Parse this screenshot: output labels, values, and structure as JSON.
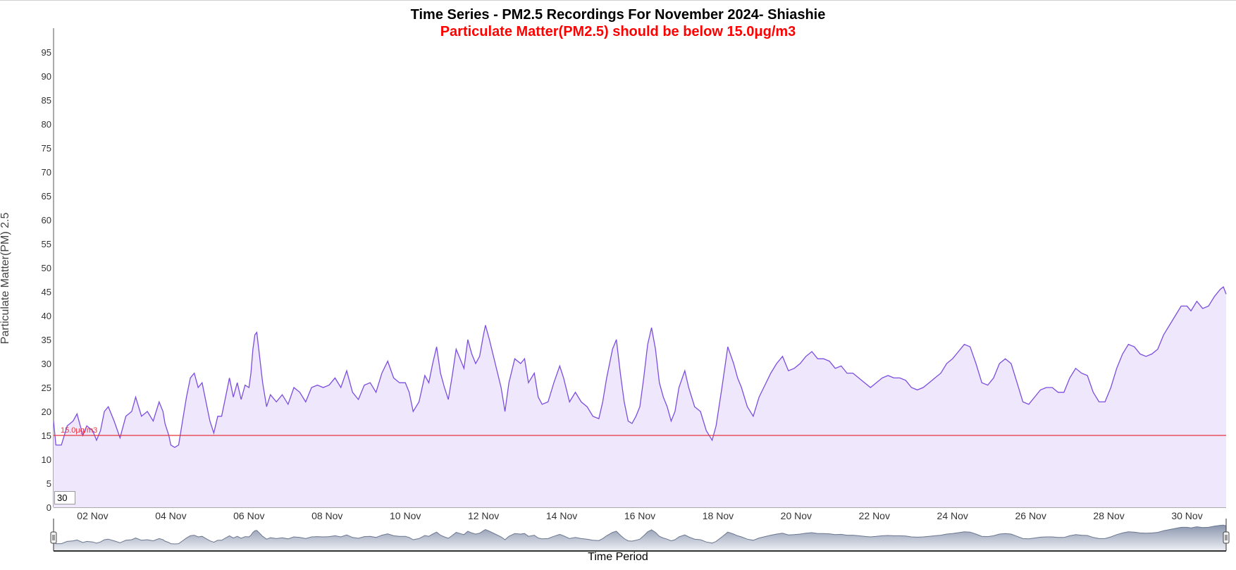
{
  "chart_data": {
    "type": "area",
    "title": "Time Series - PM2.5 Recordings For November 2024- Shiashie",
    "subtitle": "Particulate Matter(PM2.5) should be below 15.0μg/m3",
    "ylabel": "Particulate Matter(PM) 2.5",
    "xlabel": "Time Period",
    "ylim": [
      0,
      100
    ],
    "y_ticks": [
      0,
      5,
      10,
      15,
      20,
      25,
      30,
      35,
      40,
      45,
      50,
      55,
      60,
      65,
      70,
      75,
      80,
      85,
      90,
      95
    ],
    "x_start_day": 1,
    "x_end_day": 31,
    "x_ticks": [
      {
        "day": 2,
        "label": "02 Nov"
      },
      {
        "day": 4,
        "label": "04 Nov"
      },
      {
        "day": 6,
        "label": "06 Nov"
      },
      {
        "day": 8,
        "label": "08 Nov"
      },
      {
        "day": 10,
        "label": "10 Nov"
      },
      {
        "day": 12,
        "label": "12 Nov"
      },
      {
        "day": 14,
        "label": "14 Nov"
      },
      {
        "day": 16,
        "label": "16 Nov"
      },
      {
        "day": 18,
        "label": "18 Nov"
      },
      {
        "day": 20,
        "label": "20 Nov"
      },
      {
        "day": 22,
        "label": "22 Nov"
      },
      {
        "day": 24,
        "label": "24 Nov"
      },
      {
        "day": 26,
        "label": "26 Nov"
      },
      {
        "day": 28,
        "label": "28 Nov"
      },
      {
        "day": 30,
        "label": "30 Nov"
      }
    ],
    "threshold": {
      "value": 15.0,
      "label": "15.0μg/m3",
      "color": "#e8343c"
    },
    "line_color": "#7c4ddf",
    "fill_color": "#efe8fd",
    "series": [
      {
        "points": [
          [
            1.0,
            18
          ],
          [
            1.06,
            13
          ],
          [
            1.2,
            13
          ],
          [
            1.35,
            17
          ],
          [
            1.5,
            18
          ],
          [
            1.6,
            19.5
          ],
          [
            1.75,
            15
          ],
          [
            1.85,
            17
          ],
          [
            2.0,
            16
          ],
          [
            2.1,
            14
          ],
          [
            2.2,
            16
          ],
          [
            2.3,
            20
          ],
          [
            2.4,
            21
          ],
          [
            2.55,
            18
          ],
          [
            2.7,
            14.5
          ],
          [
            2.85,
            19
          ],
          [
            3.0,
            20
          ],
          [
            3.1,
            23
          ],
          [
            3.25,
            19
          ],
          [
            3.4,
            20
          ],
          [
            3.55,
            18
          ],
          [
            3.7,
            22
          ],
          [
            3.8,
            20
          ],
          [
            3.85,
            17.5
          ],
          [
            3.95,
            15
          ],
          [
            4.0,
            13
          ],
          [
            4.1,
            12.5
          ],
          [
            4.2,
            13
          ],
          [
            4.3,
            18
          ],
          [
            4.4,
            23
          ],
          [
            4.5,
            27
          ],
          [
            4.6,
            28
          ],
          [
            4.7,
            25
          ],
          [
            4.8,
            26
          ],
          [
            4.9,
            22
          ],
          [
            5.0,
            18
          ],
          [
            5.1,
            15.5
          ],
          [
            5.2,
            19
          ],
          [
            5.3,
            19
          ],
          [
            5.4,
            23
          ],
          [
            5.5,
            27
          ],
          [
            5.6,
            23
          ],
          [
            5.7,
            26
          ],
          [
            5.8,
            22.5
          ],
          [
            5.9,
            25.5
          ],
          [
            6.0,
            25
          ],
          [
            6.05,
            28
          ],
          [
            6.1,
            33
          ],
          [
            6.15,
            36
          ],
          [
            6.2,
            36.5
          ],
          [
            6.25,
            33
          ],
          [
            6.35,
            26
          ],
          [
            6.45,
            21
          ],
          [
            6.55,
            23.5
          ],
          [
            6.7,
            22
          ],
          [
            6.85,
            23.5
          ],
          [
            7.0,
            21.5
          ],
          [
            7.15,
            25
          ],
          [
            7.3,
            24
          ],
          [
            7.45,
            22
          ],
          [
            7.6,
            25
          ],
          [
            7.75,
            25.5
          ],
          [
            7.9,
            25
          ],
          [
            8.05,
            25.5
          ],
          [
            8.2,
            27
          ],
          [
            8.35,
            25
          ],
          [
            8.5,
            28.5
          ],
          [
            8.65,
            24
          ],
          [
            8.8,
            22.5
          ],
          [
            8.95,
            25.5
          ],
          [
            9.1,
            26
          ],
          [
            9.25,
            24
          ],
          [
            9.4,
            28
          ],
          [
            9.55,
            30.5
          ],
          [
            9.7,
            27
          ],
          [
            9.85,
            26
          ],
          [
            10.0,
            26
          ],
          [
            10.1,
            24
          ],
          [
            10.2,
            20
          ],
          [
            10.35,
            22
          ],
          [
            10.5,
            27.5
          ],
          [
            10.6,
            26
          ],
          [
            10.7,
            30
          ],
          [
            10.8,
            33.5
          ],
          [
            10.9,
            28
          ],
          [
            11.0,
            25
          ],
          [
            11.1,
            22.5
          ],
          [
            11.2,
            27.5
          ],
          [
            11.3,
            33
          ],
          [
            11.4,
            31
          ],
          [
            11.5,
            29
          ],
          [
            11.6,
            35
          ],
          [
            11.7,
            32
          ],
          [
            11.8,
            30
          ],
          [
            11.9,
            31.5
          ],
          [
            12.0,
            36
          ],
          [
            12.05,
            38
          ],
          [
            12.15,
            35
          ],
          [
            12.3,
            30
          ],
          [
            12.45,
            25
          ],
          [
            12.55,
            20
          ],
          [
            12.65,
            26
          ],
          [
            12.8,
            31
          ],
          [
            12.95,
            30
          ],
          [
            13.05,
            31
          ],
          [
            13.15,
            26
          ],
          [
            13.3,
            28
          ],
          [
            13.4,
            23
          ],
          [
            13.5,
            21.5
          ],
          [
            13.65,
            22
          ],
          [
            13.8,
            26
          ],
          [
            13.95,
            29.5
          ],
          [
            14.05,
            27
          ],
          [
            14.2,
            22
          ],
          [
            14.35,
            24
          ],
          [
            14.5,
            22
          ],
          [
            14.65,
            21
          ],
          [
            14.8,
            19
          ],
          [
            14.95,
            18.5
          ],
          [
            15.05,
            22
          ],
          [
            15.15,
            27
          ],
          [
            15.3,
            33
          ],
          [
            15.4,
            35
          ],
          [
            15.5,
            28
          ],
          [
            15.6,
            22
          ],
          [
            15.7,
            18
          ],
          [
            15.8,
            17.5
          ],
          [
            15.9,
            19
          ],
          [
            16.0,
            21
          ],
          [
            16.1,
            27
          ],
          [
            16.2,
            34
          ],
          [
            16.3,
            37.5
          ],
          [
            16.4,
            33
          ],
          [
            16.5,
            26
          ],
          [
            16.6,
            23
          ],
          [
            16.7,
            21
          ],
          [
            16.8,
            18
          ],
          [
            16.9,
            20
          ],
          [
            17.0,
            25
          ],
          [
            17.15,
            28.5
          ],
          [
            17.25,
            25
          ],
          [
            17.4,
            21
          ],
          [
            17.55,
            20
          ],
          [
            17.7,
            16
          ],
          [
            17.85,
            14
          ],
          [
            17.95,
            17
          ],
          [
            18.1,
            25
          ],
          [
            18.25,
            33.5
          ],
          [
            18.4,
            30
          ],
          [
            18.5,
            27
          ],
          [
            18.6,
            25
          ],
          [
            18.75,
            21
          ],
          [
            18.9,
            19
          ],
          [
            19.05,
            23
          ],
          [
            19.2,
            25.5
          ],
          [
            19.35,
            28
          ],
          [
            19.5,
            30
          ],
          [
            19.65,
            31.5
          ],
          [
            19.8,
            28.5
          ],
          [
            19.95,
            29
          ],
          [
            20.1,
            30
          ],
          [
            20.25,
            31.5
          ],
          [
            20.4,
            32.5
          ],
          [
            20.55,
            31
          ],
          [
            20.7,
            31
          ],
          [
            20.85,
            30.5
          ],
          [
            21.0,
            29
          ],
          [
            21.15,
            29.5
          ],
          [
            21.3,
            28
          ],
          [
            21.45,
            28
          ],
          [
            21.6,
            27
          ],
          [
            21.75,
            26
          ],
          [
            21.9,
            25
          ],
          [
            22.05,
            26
          ],
          [
            22.2,
            27
          ],
          [
            22.35,
            27.5
          ],
          [
            22.5,
            27
          ],
          [
            22.65,
            27
          ],
          [
            22.8,
            26.5
          ],
          [
            22.95,
            25
          ],
          [
            23.1,
            24.5
          ],
          [
            23.25,
            25
          ],
          [
            23.4,
            26
          ],
          [
            23.55,
            27
          ],
          [
            23.7,
            28
          ],
          [
            23.85,
            30
          ],
          [
            24.0,
            31
          ],
          [
            24.15,
            32.5
          ],
          [
            24.3,
            34
          ],
          [
            24.45,
            33.5
          ],
          [
            24.6,
            30
          ],
          [
            24.75,
            26
          ],
          [
            24.9,
            25.5
          ],
          [
            25.05,
            27
          ],
          [
            25.2,
            30
          ],
          [
            25.35,
            31
          ],
          [
            25.5,
            30
          ],
          [
            25.65,
            26
          ],
          [
            25.8,
            22
          ],
          [
            25.95,
            21.5
          ],
          [
            26.1,
            23
          ],
          [
            26.25,
            24.5
          ],
          [
            26.4,
            25
          ],
          [
            26.55,
            25
          ],
          [
            26.7,
            24
          ],
          [
            26.85,
            24
          ],
          [
            27.0,
            27
          ],
          [
            27.15,
            29
          ],
          [
            27.3,
            28
          ],
          [
            27.45,
            27.5
          ],
          [
            27.6,
            24
          ],
          [
            27.75,
            22
          ],
          [
            27.9,
            22
          ],
          [
            28.05,
            25
          ],
          [
            28.2,
            29
          ],
          [
            28.35,
            32
          ],
          [
            28.5,
            34
          ],
          [
            28.65,
            33.5
          ],
          [
            28.8,
            32
          ],
          [
            28.95,
            31.5
          ],
          [
            29.1,
            32
          ],
          [
            29.25,
            33
          ],
          [
            29.4,
            36
          ],
          [
            29.55,
            38
          ],
          [
            29.7,
            40
          ],
          [
            29.85,
            42
          ],
          [
            30.0,
            42
          ],
          [
            30.1,
            41
          ],
          [
            30.25,
            43
          ],
          [
            30.4,
            41.5
          ],
          [
            30.55,
            42
          ],
          [
            30.7,
            44
          ],
          [
            30.85,
            45.5
          ],
          [
            30.93,
            46
          ],
          [
            31.0,
            44.5
          ]
        ]
      }
    ]
  },
  "range_selector": {
    "value": "30"
  }
}
